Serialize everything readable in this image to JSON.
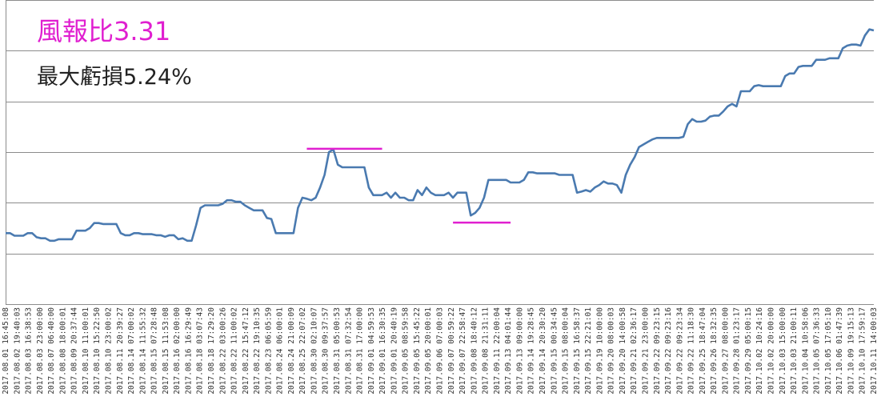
{
  "colors": {
    "series": "#4a7ab0",
    "annotation": "#e01fd0",
    "grid": "#8c8c8c",
    "text": "#222222"
  },
  "annotations": {
    "title": "風報比3.31",
    "subtitle": "最大虧損5.24%"
  },
  "chart_data": {
    "type": "line",
    "title": "風報比3.31",
    "subtitle": "最大虧損5.24%",
    "xlabel": "",
    "ylabel": "",
    "y_tick_labels_shown": false,
    "grid": "horizontal",
    "legend": "none",
    "ylim": [
      0,
      6
    ],
    "x_tick_labels": [
      "2017.08.01 16:45:08",
      "2017.08.02 19:40:03",
      "2017.08.03 16:38:53",
      "2017.08.03 23:00:00",
      "2017.08.07 06:40:00",
      "2017.08.08 18:00:01",
      "2017.08.09 20:37:44",
      "2017.08.10 11:00:01",
      "2017.08.10 15:22:50",
      "2017.08.10 23:00:02",
      "2017.08.11 20:39:27",
      "2017.08.14 07:00:02",
      "2017.08.14 11:55:32",
      "2017.08.15 07:28:48",
      "2017.08.15 11:53:08",
      "2017.08.16 02:00:00",
      "2017.08.16 16:29:49",
      "2017.08.18 03:07:43",
      "2017.08.18 17:29:20",
      "2017.08.22 03:00:26",
      "2017.08.22 11:00:02",
      "2017.08.22 15:47:12",
      "2017.08.22 19:10:35",
      "2017.08.23 06:05:59",
      "2017.08.24 06:00:01",
      "2017.08.24 21:00:09",
      "2017.08.25 22:07:02",
      "2017.08.30 02:10:07",
      "2017.08.30 09:37:57",
      "2017.08.31 05:00:53",
      "2017.08.31 07:32:54",
      "2017.08.31 17:00:00",
      "2017.09.01 04:59:53",
      "2017.09.01 16:30:35",
      "2017.09.01 20:40:19",
      "2017.09.05 08:59:58",
      "2017.09.05 15:45:22",
      "2017.09.05 20:00:01",
      "2017.09.06 07:00:03",
      "2017.09.07 00:59:22",
      "2017.09.07 22:58:47",
      "2017.09.08 18:40:12",
      "2017.09.08 21:31:11",
      "2017.09.11 22:00:04",
      "2017.09.13 04:01:44",
      "2017.09.13 09:00:00",
      "2017.09.14 19:28:45",
      "2017.09.14 20:30:20",
      "2017.09.15 00:34:45",
      "2017.09.15 08:00:04",
      "2017.09.15 16:58:37",
      "2017.09.15 22:21:01",
      "2017.09.19 10:00:00",
      "2017.09.20 08:00:03",
      "2017.09.20 14:00:58",
      "2017.09.21 02:36:17",
      "2017.09.21 23:00:00",
      "2017.09.22 09:23:15",
      "2017.09.22 09:23:16",
      "2017.09.22 09:23:34",
      "2017.09.22 11:18:30",
      "2017.09.25 18:47:04",
      "2017.09.26 18:32:35",
      "2017.09.27 08:00:00",
      "2017.09.28 01:23:17",
      "2017.09.29 05:00:15",
      "2017.10.02 10:24:16",
      "2017.10.02 20:00:00",
      "2017.10.03 15:00:00",
      "2017.10.03 21:00:11",
      "2017.10.04 10:58:06",
      "2017.10.05 07:36:33",
      "2017.10.05 17:05:10",
      "2017.10.06 01:47:39",
      "2017.10.09 19:15:13",
      "2017.10.10 17:59:17",
      "2017.10.11 14:00:03"
    ],
    "series": [
      {
        "values": [
          1.4,
          1.4,
          1.35,
          1.35,
          1.35,
          1.4,
          1.4,
          1.32,
          1.3,
          1.3,
          1.25,
          1.25,
          1.28,
          1.28,
          1.28,
          1.28,
          1.45,
          1.45,
          1.45,
          1.5,
          1.6,
          1.6,
          1.58,
          1.58,
          1.58,
          1.58,
          1.4,
          1.36,
          1.36,
          1.4,
          1.4,
          1.38,
          1.38,
          1.38,
          1.36,
          1.36,
          1.33,
          1.36,
          1.36,
          1.28,
          1.3,
          1.25,
          1.25,
          1.55,
          1.9,
          1.95,
          1.95,
          1.95,
          1.95,
          1.98,
          2.05,
          2.05,
          2.02,
          2.02,
          1.95,
          1.9,
          1.85,
          1.85,
          1.85,
          1.7,
          1.68,
          1.4,
          1.4,
          1.4,
          1.4,
          1.4,
          1.9,
          2.1,
          2.08,
          2.05,
          2.1,
          2.3,
          2.55,
          3.0,
          3.05,
          2.75,
          2.7,
          2.7,
          2.7,
          2.7,
          2.7,
          2.7,
          2.3,
          2.15,
          2.15,
          2.15,
          2.2,
          2.1,
          2.2,
          2.1,
          2.1,
          2.05,
          2.05,
          2.25,
          2.15,
          2.3,
          2.2,
          2.15,
          2.15,
          2.15,
          2.2,
          2.1,
          2.2,
          2.2,
          2.2,
          1.75,
          1.8,
          1.9,
          2.1,
          2.45,
          2.45,
          2.45,
          2.45,
          2.45,
          2.4,
          2.4,
          2.4,
          2.45,
          2.6,
          2.6,
          2.58,
          2.58,
          2.58,
          2.58,
          2.58,
          2.55,
          2.55,
          2.55,
          2.55,
          2.2,
          2.22,
          2.25,
          2.22,
          2.3,
          2.35,
          2.42,
          2.38,
          2.38,
          2.35,
          2.2,
          2.55,
          2.75,
          2.9,
          3.1,
          3.15,
          3.2,
          3.25,
          3.28,
          3.28,
          3.28,
          3.28,
          3.28,
          3.28,
          3.3,
          3.55,
          3.65,
          3.6,
          3.6,
          3.62,
          3.7,
          3.72,
          3.72,
          3.8,
          3.9,
          3.95,
          3.9,
          4.2,
          4.2,
          4.2,
          4.3,
          4.32,
          4.3,
          4.3,
          4.3,
          4.3,
          4.3,
          4.5,
          4.55,
          4.55,
          4.68,
          4.7,
          4.7,
          4.7,
          4.82,
          4.82,
          4.82,
          4.85,
          4.85,
          4.85,
          5.05,
          5.1,
          5.12,
          5.12,
          5.1,
          5.3,
          5.42,
          5.4
        ]
      }
    ]
  }
}
